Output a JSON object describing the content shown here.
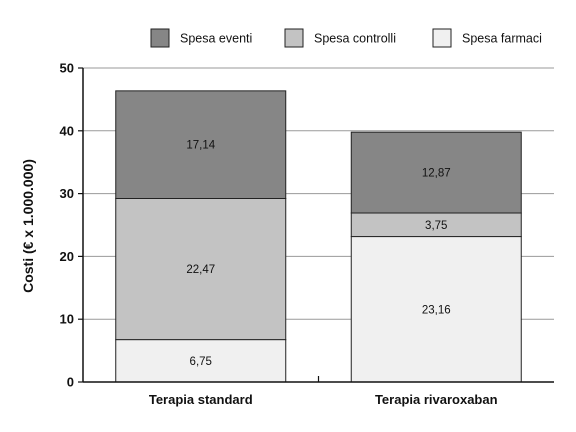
{
  "chart_data": {
    "type": "bar",
    "stacked": true,
    "title": "",
    "xlabel": "",
    "ylabel": "Costi (€ x 1.000.000)",
    "ylim": [
      0,
      50
    ],
    "yticks": [
      0,
      10,
      20,
      30,
      40,
      50
    ],
    "grid": true,
    "legend_position": "top-right",
    "categories": [
      "Terapia standard",
      "Terapia rivaroxaban"
    ],
    "series": [
      {
        "name": "Spesa farmaci",
        "values": [
          6.75,
          23.16
        ],
        "labels": [
          "6,75",
          "23,16"
        ],
        "color": "#f0f0f0"
      },
      {
        "name": "Spesa controlli",
        "values": [
          22.47,
          3.75
        ],
        "labels": [
          "22,47",
          "3,75"
        ],
        "color": "#c3c3c3"
      },
      {
        "name": "Spesa eventi",
        "values": [
          17.14,
          12.87
        ],
        "labels": [
          "17,14",
          "12,87"
        ],
        "color": "#868686"
      }
    ],
    "legend_order": [
      "Spesa eventi",
      "Spesa controlli",
      "Spesa farmaci"
    ]
  }
}
